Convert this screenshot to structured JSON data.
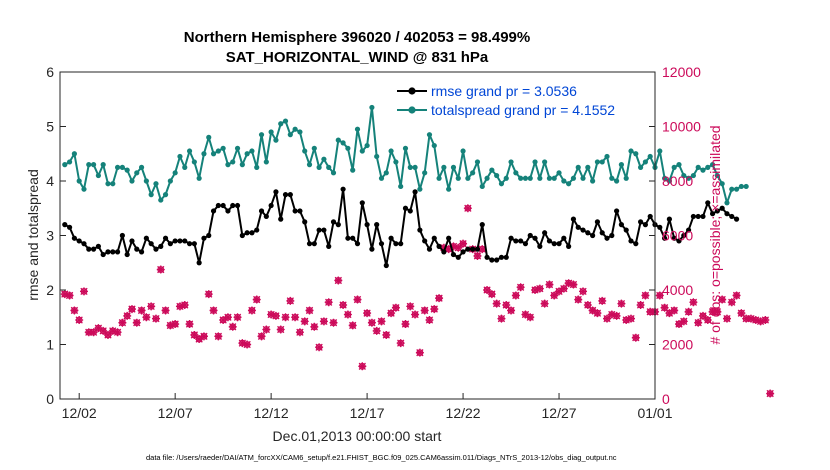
{
  "chart_data": {
    "type": "line",
    "title": "Northern Hemisphere 396020 / 402053 = 98.499%",
    "subtitle": "SAT_HORIZONTAL_WIND @ 831 hPa",
    "xlabel": "Dec.01,2013 00:00:00 start",
    "ylabel_left": "rmse and totalspread",
    "ylabel_right": "# of obs: o=possible; ×=assimilated",
    "x_ticklabels": [
      "12/02",
      "12/07",
      "12/12",
      "12/17",
      "12/22",
      "12/27",
      "01/01"
    ],
    "x_tick_days": [
      2,
      7,
      12,
      17,
      22,
      27,
      32
    ],
    "xlim_days": [
      1.0,
      32.0
    ],
    "ylim_left": [
      0,
      6
    ],
    "yticks_left": [
      0,
      1,
      2,
      3,
      4,
      5,
      6
    ],
    "ylim_right": [
      0,
      12000
    ],
    "yticks_right": [
      0,
      2000,
      4000,
      6000,
      8000,
      10000,
      12000
    ],
    "grid": false,
    "legend_position": "top-right",
    "colors": {
      "rmse": "#000000",
      "spread": "#15827a",
      "obs": "#cc0a5a",
      "legend_text": "#0046d6"
    },
    "series": [
      {
        "name": "rmse grand pr = 3.0536",
        "axis": "left",
        "values": [
          3.2,
          3.15,
          2.95,
          2.9,
          2.85,
          2.75,
          2.75,
          2.8,
          2.65,
          2.7,
          2.7,
          2.7,
          3.0,
          2.65,
          2.9,
          2.75,
          2.7,
          2.95,
          2.85,
          2.75,
          2.8,
          2.95,
          2.85,
          2.9,
          2.9,
          2.9,
          2.85,
          2.85,
          2.5,
          2.95,
          3.0,
          3.45,
          3.55,
          3.55,
          3.45,
          3.55,
          3.55,
          3.0,
          3.05,
          3.05,
          3.1,
          3.45,
          3.35,
          3.55,
          3.8,
          3.3,
          3.75,
          3.75,
          3.45,
          3.45,
          3.25,
          2.85,
          2.85,
          3.1,
          3.1,
          2.8,
          3.25,
          3.2,
          3.85,
          2.95,
          2.95,
          2.85,
          3.6,
          3.2,
          2.75,
          3.2,
          2.85,
          2.45,
          2.95,
          2.85,
          2.85,
          3.5,
          3.45,
          3.8,
          3.1,
          2.9,
          2.75,
          2.95,
          2.8,
          2.7,
          2.95,
          2.65,
          2.6,
          2.7,
          2.75,
          2.75,
          2.75,
          3.2,
          2.6,
          2.55,
          2.55,
          2.6,
          2.6,
          2.95,
          2.9,
          2.9,
          2.85,
          3.0,
          2.95,
          2.8,
          3.05,
          2.9,
          2.85,
          2.85,
          2.95,
          2.8,
          3.3,
          3.15,
          3.1,
          3.05,
          3.0,
          3.25,
          3.05,
          2.95,
          3.0,
          3.45,
          3.2,
          3.1,
          2.9,
          2.85,
          3.25,
          3.2,
          3.35,
          3.2,
          3.15,
          2.95,
          3.3,
          2.95,
          2.9,
          3.0,
          3.1,
          3.35,
          3.35,
          3.35,
          3.6,
          3.4,
          3.45,
          3.5,
          3.4,
          3.35,
          3.3
        ]
      },
      {
        "name": "totalspread grand pr = 4.1552",
        "axis": "left",
        "values": [
          4.3,
          4.35,
          4.5,
          4.0,
          3.85,
          4.3,
          4.3,
          4.1,
          4.3,
          3.95,
          3.95,
          4.25,
          4.25,
          4.2,
          4.0,
          4.15,
          4.25,
          4.0,
          3.75,
          3.95,
          3.65,
          3.75,
          4.0,
          4.15,
          4.45,
          4.25,
          4.55,
          4.35,
          4.05,
          4.5,
          4.8,
          4.5,
          4.55,
          4.6,
          4.3,
          4.35,
          4.6,
          4.3,
          4.5,
          4.55,
          4.25,
          4.85,
          4.35,
          4.9,
          4.75,
          5.05,
          5.1,
          4.85,
          4.95,
          4.9,
          4.55,
          4.3,
          4.6,
          4.25,
          4.4,
          4.25,
          4.15,
          4.75,
          4.7,
          4.6,
          4.2,
          4.95,
          4.55,
          4.65,
          5.35,
          4.45,
          4.05,
          4.15,
          4.55,
          4.35,
          3.9,
          4.6,
          4.25,
          4.25,
          3.85,
          4.15,
          4.85,
          4.65,
          4.05,
          4.25,
          3.85,
          4.25,
          4.05,
          4.55,
          4.05,
          4.15,
          4.35,
          3.9,
          4.05,
          4.2,
          4.1,
          3.95,
          4.05,
          4.35,
          4.15,
          4.05,
          4.05,
          4.05,
          4.35,
          4.05,
          4.35,
          4.05,
          4.05,
          4.15,
          4.0,
          3.95,
          4.05,
          4.25,
          4.05,
          4.25,
          4.0,
          4.35,
          4.35,
          4.45,
          4.05,
          4.0,
          4.3,
          4.05,
          4.55,
          4.5,
          4.25,
          4.35,
          4.45,
          4.25,
          4.55,
          4.05,
          4.0,
          4.25,
          4.3,
          4.1,
          4.05,
          4.1,
          4.25,
          4.2,
          4.25,
          4.3,
          4.1,
          3.95,
          3.6,
          3.85,
          3.85,
          3.9,
          3.9
        ]
      },
      {
        "name": "# of obs",
        "axis": "right",
        "values": [
          3850,
          3800,
          3250,
          2900,
          3950,
          2450,
          2450,
          2600,
          2500,
          2350,
          2500,
          2450,
          2800,
          3050,
          3300,
          2800,
          3250,
          3000,
          3400,
          2950,
          4750,
          3250,
          2700,
          2750,
          3400,
          3450,
          2750,
          2350,
          2200,
          2300,
          3850,
          3250,
          2300,
          2900,
          3000,
          2650,
          3000,
          2050,
          2000,
          3250,
          3650,
          2300,
          2550,
          3100,
          3050,
          2550,
          3000,
          3600,
          3000,
          2450,
          2850,
          3250,
          2650,
          1900,
          2850,
          3550,
          2800,
          4350,
          3450,
          3100,
          2700,
          3650,
          1200,
          3150,
          2800,
          2500,
          2850,
          2350,
          3150,
          3350,
          2050,
          2750,
          3400,
          3100,
          1700,
          3250,
          2900,
          3300,
          3700,
          5550,
          5500,
          5600,
          5550,
          5700,
          7000,
          5500,
          5250,
          5500,
          4000,
          3850,
          3500,
          2950,
          3450,
          3250,
          3800,
          4100,
          3100,
          3000,
          4000,
          4050,
          3500,
          4200,
          3800,
          3950,
          4050,
          4250,
          4200,
          3650,
          3950,
          3450,
          3250,
          3150,
          3600,
          2950,
          3100,
          3050,
          3500,
          2900,
          2950,
          2250,
          3450,
          3800,
          3200,
          3200,
          3800,
          3350,
          3150,
          3250,
          2750,
          2850,
          3200,
          3550,
          2800,
          3050,
          2900,
          3200,
          3200,
          3650,
          2950,
          3550,
          3800,
          3150,
          2950,
          2950,
          2900,
          2850,
          2900,
          200
        ]
      }
    ]
  },
  "footer": "data file: /Users/raeder/DAI/ATM_forcXX/CAM6_setup/f.e21.FHIST_BGC.f09_025.CAM6assim.011/Diags_NTrS_2013-12/obs_diag_output.nc"
}
